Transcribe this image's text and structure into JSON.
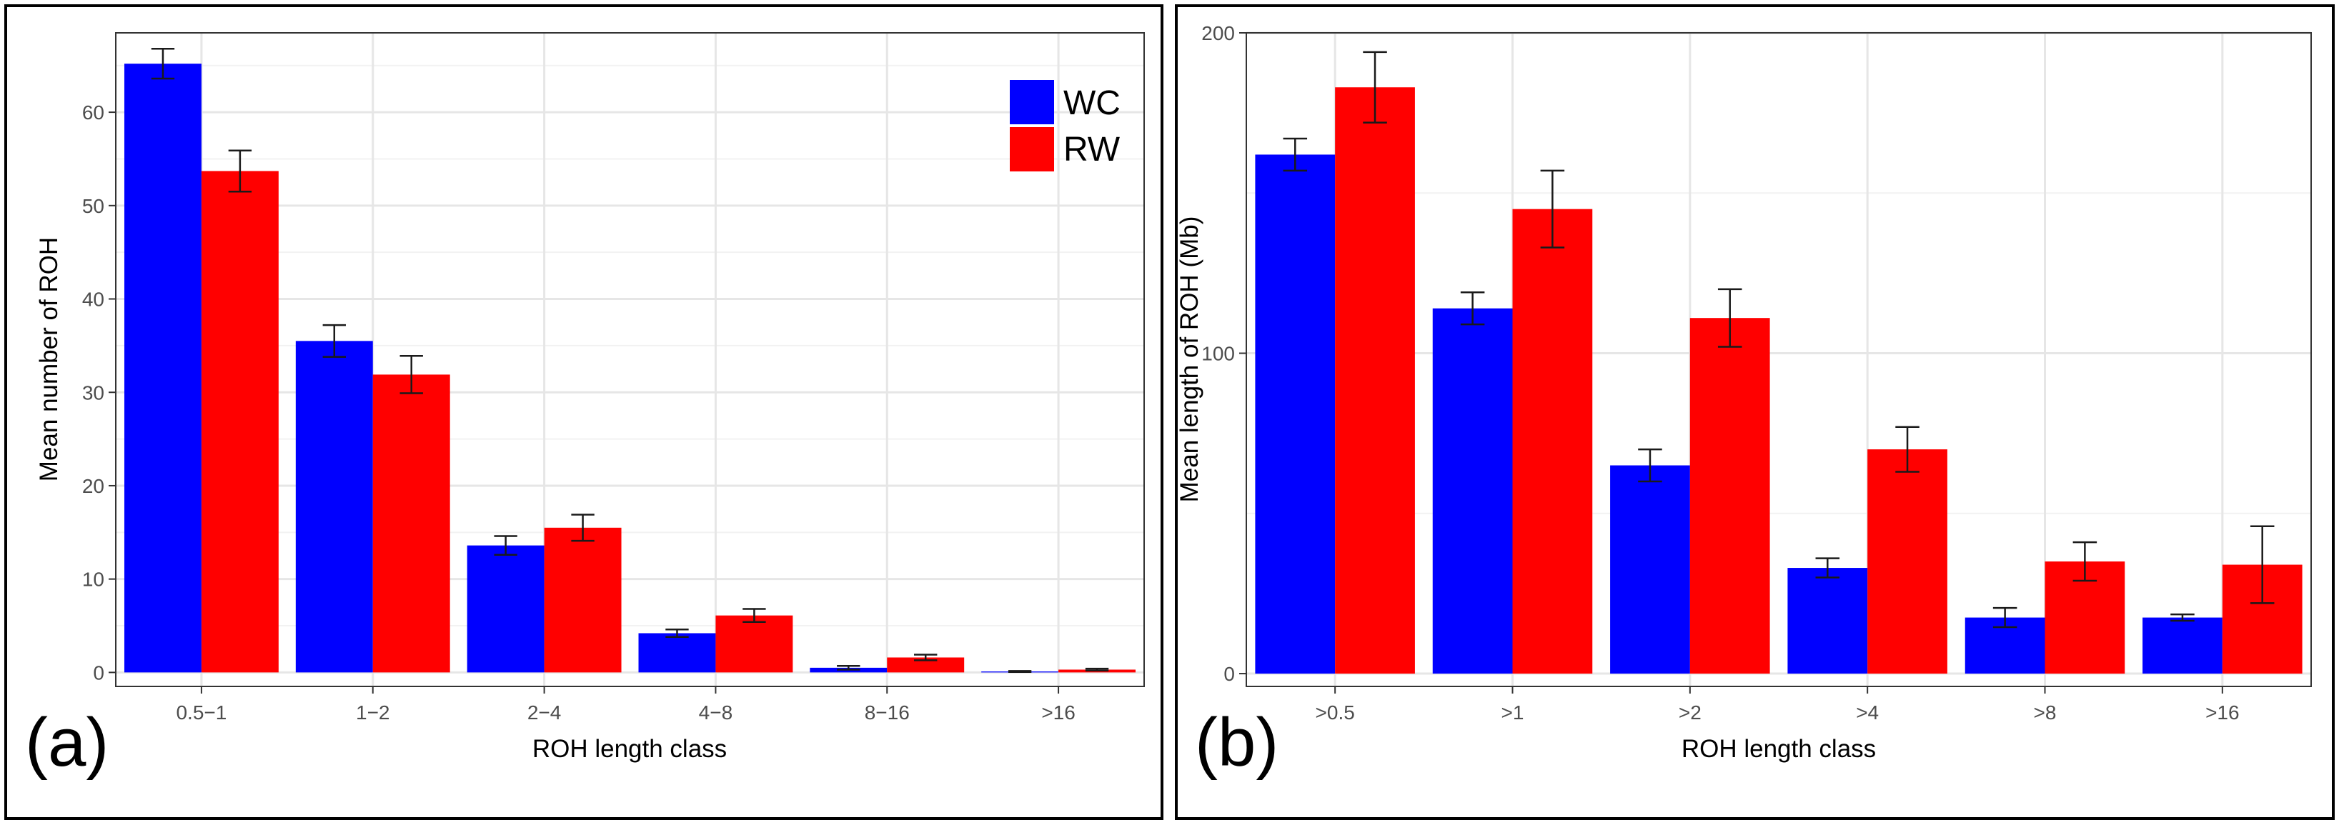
{
  "colors": {
    "WC": "#0000ff",
    "RW": "#ff0000"
  },
  "chart_data": [
    {
      "type": "bar",
      "panel_label": "(a)",
      "categories": [
        "0.5−1",
        "1−2",
        "2−4",
        "4−8",
        "8−16",
        ">16"
      ],
      "series": [
        {
          "name": "WC",
          "values": [
            65.2,
            35.5,
            13.6,
            4.2,
            0.5,
            0.1
          ],
          "errors": [
            1.6,
            1.7,
            1.0,
            0.4,
            0.2,
            0.05
          ]
        },
        {
          "name": "RW",
          "values": [
            53.7,
            31.9,
            15.5,
            6.1,
            1.6,
            0.3
          ],
          "errors": [
            2.2,
            2.0,
            1.4,
            0.7,
            0.3,
            0.1
          ]
        }
      ],
      "xlabel": "ROH length class",
      "ylabel": "Mean number of ROH",
      "ylim": [
        -1.5,
        68.5
      ],
      "yticks": [
        0,
        10,
        20,
        30,
        40,
        50,
        60
      ],
      "ytick_labels": [
        "0",
        "10",
        "20",
        "30",
        "40",
        "50",
        "60"
      ],
      "legend": {
        "position": "top-right",
        "labels": [
          "WC",
          "RW"
        ]
      },
      "grid": true
    },
    {
      "type": "bar",
      "panel_label": "(b)",
      "categories": [
        ">0.5",
        ">1",
        ">2",
        ">4",
        ">8",
        ">16"
      ],
      "series": [
        {
          "name": "WC",
          "values": [
            162,
            114,
            65,
            33,
            17.5,
            17.5
          ],
          "errors": [
            5,
            5,
            5,
            3,
            3,
            1
          ]
        },
        {
          "name": "RW",
          "values": [
            183,
            145,
            111,
            70,
            35,
            34
          ],
          "errors": [
            11,
            12,
            9,
            7,
            6,
            12
          ]
        }
      ],
      "xlabel": "ROH length class",
      "ylabel": "Mean length of ROH (Mb)",
      "ylim": [
        -4,
        200
      ],
      "yticks": [
        0,
        100,
        200
      ],
      "ytick_labels": [
        "0",
        "100",
        "200"
      ],
      "legend": null,
      "grid": true
    }
  ]
}
